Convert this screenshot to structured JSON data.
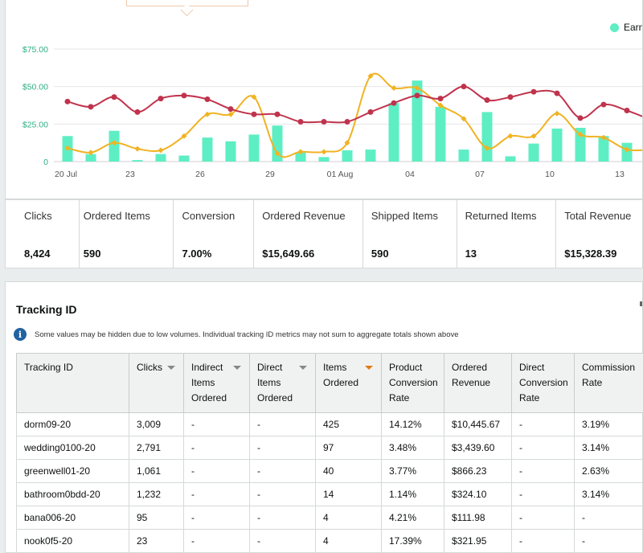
{
  "chart": {
    "legend_label": "Earni",
    "colors": {
      "bars": "#5eeec4",
      "line_red": "#c0334d",
      "line_orange": "#f0b323",
      "grid": "#e6e6e6",
      "axis_text": "#555",
      "y_text": "#2eae85"
    },
    "y_ticks": [
      "$75.00",
      "$50.00",
      "$25.00",
      "0"
    ],
    "x_ticks": [
      "20 Jul",
      "23",
      "26",
      "29",
      "01 Aug",
      "04",
      "07",
      "10",
      "13"
    ]
  },
  "chart_data": {
    "type": "bar",
    "x_start": "20 Jul",
    "ylim": [
      0,
      75
    ],
    "series": [
      {
        "name": "Earni",
        "kind": "bar",
        "values": [
          17,
          5,
          20.5,
          1,
          5,
          4,
          16,
          13.5,
          18,
          24,
          6,
          3,
          7.5,
          8,
          39,
          54,
          36.5,
          8,
          33,
          3.5,
          12,
          22,
          22.5,
          17,
          12.5
        ]
      },
      {
        "kind": "line",
        "values": [
          40,
          36.5,
          43,
          33,
          42,
          44,
          41.5,
          35,
          31.5,
          31.5,
          26.5,
          26.5,
          26.5,
          33,
          39,
          44,
          42,
          50,
          41,
          43,
          46.5,
          45.5,
          29,
          38,
          34,
          28
        ]
      },
      {
        "kind": "line",
        "values": [
          9,
          6,
          12.5,
          8.5,
          7.5,
          17,
          31.5,
          31.5,
          43,
          5.5,
          6.5,
          6.5,
          12.5,
          57,
          49,
          49,
          37.5,
          28.5,
          9,
          17,
          17,
          32,
          18,
          16,
          8,
          8
        ]
      }
    ]
  },
  "metrics": [
    {
      "label": "Clicks",
      "value": "8,424"
    },
    {
      "label": "Ordered Items",
      "value": "590"
    },
    {
      "label": "Conversion",
      "value": "7.00%"
    },
    {
      "label": "Ordered Revenue",
      "value": "$15,649.66"
    },
    {
      "label": "Shipped Items",
      "value": "590"
    },
    {
      "label": "Returned Items",
      "value": "13"
    },
    {
      "label": "Total Revenue",
      "value": "$15,328.39"
    }
  ],
  "tracking": {
    "title": "Tracking ID",
    "notice": "Some values may be hidden due to low volumes. Individual tracking ID metrics may not sum to aggregate totals shown above",
    "columns": [
      {
        "label": "Tracking ID",
        "sortable": false
      },
      {
        "label": "Clicks",
        "sortable": true
      },
      {
        "label": "Indirect Items Ordered",
        "sortable": true
      },
      {
        "label": "Direct Items Ordered",
        "sortable": true
      },
      {
        "label": "Items Ordered",
        "sortable": true,
        "active": true
      },
      {
        "label": "Product Conversion Rate",
        "sortable": false
      },
      {
        "label": "Ordered Revenue",
        "sortable": false
      },
      {
        "label": "Direct Conversion Rate",
        "sortable": false
      },
      {
        "label": "Commission Rate",
        "sortable": false
      }
    ],
    "rows": [
      [
        "dorm09-20",
        "3,009",
        "-",
        "-",
        "425",
        "14.12%",
        "$10,445.67",
        "-",
        "3.19%"
      ],
      [
        "wedding0100-20",
        "2,791",
        "-",
        "-",
        "97",
        "3.48%",
        "$3,439.60",
        "-",
        "3.14%"
      ],
      [
        "greenwell01-20",
        "1,061",
        "-",
        "-",
        "40",
        "3.77%",
        "$866.23",
        "-",
        "2.63%"
      ],
      [
        "bathroom0bdd-20",
        "1,232",
        "-",
        "-",
        "14",
        "1.14%",
        "$324.10",
        "-",
        "3.14%"
      ],
      [
        "bana006-20",
        "95",
        "-",
        "-",
        "4",
        "4.21%",
        "$111.98",
        "-",
        "-"
      ],
      [
        "nook0f5-20",
        "23",
        "-",
        "-",
        "4",
        "17.39%",
        "$321.95",
        "-",
        "-"
      ]
    ]
  }
}
